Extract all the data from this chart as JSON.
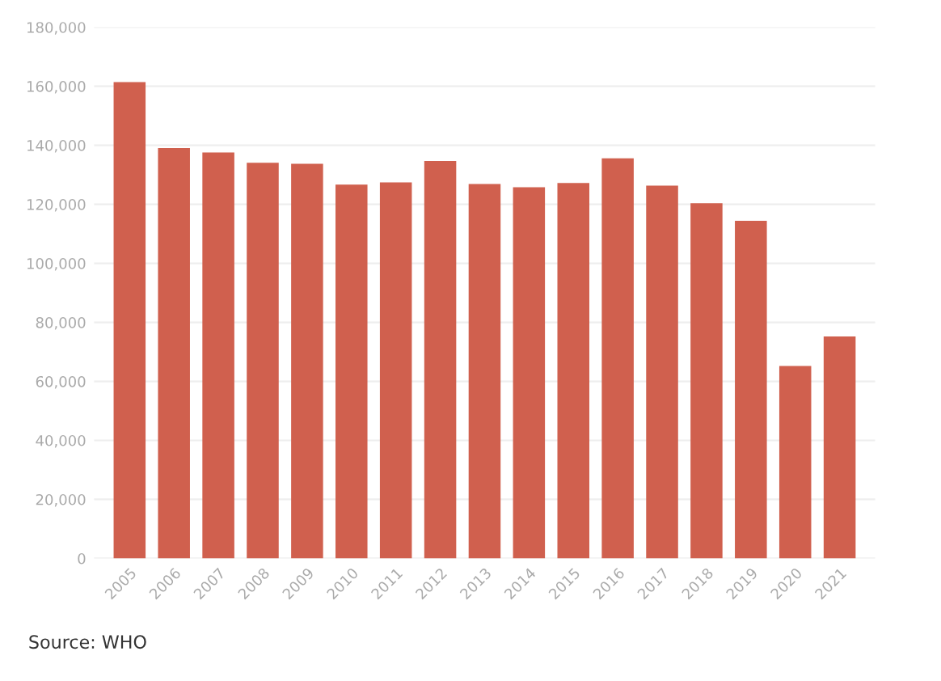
{
  "chart_data": {
    "type": "bar",
    "categories": [
      "2005",
      "2006",
      "2007",
      "2008",
      "2009",
      "2010",
      "2011",
      "2012",
      "2013",
      "2014",
      "2015",
      "2016",
      "2017",
      "2018",
      "2019",
      "2020",
      "2021"
    ],
    "values": [
      161400,
      139100,
      137600,
      134100,
      133700,
      126700,
      127400,
      134700,
      126900,
      125800,
      127200,
      135600,
      126300,
      120400,
      114400,
      65200,
      75200
    ],
    "color": "#d0604e",
    "ylim": [
      0,
      180000
    ],
    "yticks": [
      {
        "value": 0,
        "label": "0"
      },
      {
        "value": 20000,
        "label": "20,000"
      },
      {
        "value": 40000,
        "label": "40,000"
      },
      {
        "value": 60000,
        "label": "60,000"
      },
      {
        "value": 80000,
        "label": "80,000"
      },
      {
        "value": 100000,
        "label": "100,000"
      },
      {
        "value": 120000,
        "label": "120,000"
      },
      {
        "value": 140000,
        "label": "140,000"
      },
      {
        "value": 160000,
        "label": "160,000"
      },
      {
        "value": 180000,
        "label": "180,000"
      }
    ],
    "grid": "y",
    "annotations": [
      "Source: WHO"
    ]
  }
}
